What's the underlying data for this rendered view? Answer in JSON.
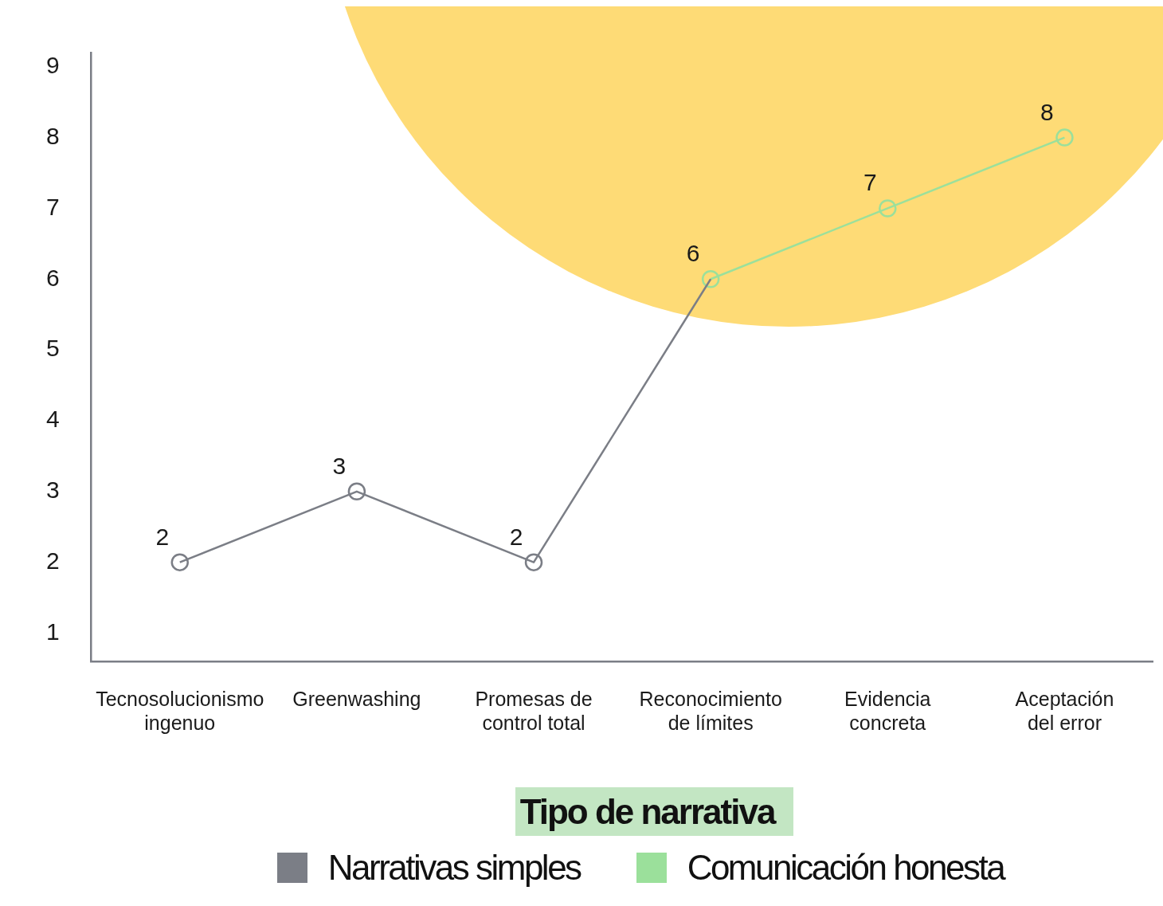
{
  "chart_data": {
    "type": "line",
    "xlabel": "Tipo de narrativa",
    "categories": [
      "Tecnosolucionismo ingenuo",
      "Greenwashing",
      "Promesas de control total",
      "Reconocimiento de límites",
      "Evidencia concreta",
      "Aceptación del error"
    ],
    "series": [
      {
        "name": "Narrativas simples",
        "color": "#7b7e86",
        "values": [
          2,
          3,
          2,
          6,
          null,
          null
        ],
        "value_labels": [
          "2",
          "3",
          "2",
          null,
          null,
          null
        ]
      },
      {
        "name": "Comunicación honesta",
        "color": "#9be09b",
        "values": [
          null,
          null,
          null,
          6,
          7,
          8
        ],
        "value_labels": [
          null,
          null,
          null,
          "6",
          "7",
          "8"
        ]
      }
    ],
    "ylim": [
      0.6,
      9.2
    ],
    "yticks": [
      1,
      2,
      3,
      4,
      5,
      6,
      7,
      8,
      9
    ],
    "grid": false,
    "legend": "bottom",
    "marker": "circle",
    "line_style": "solid"
  }
}
